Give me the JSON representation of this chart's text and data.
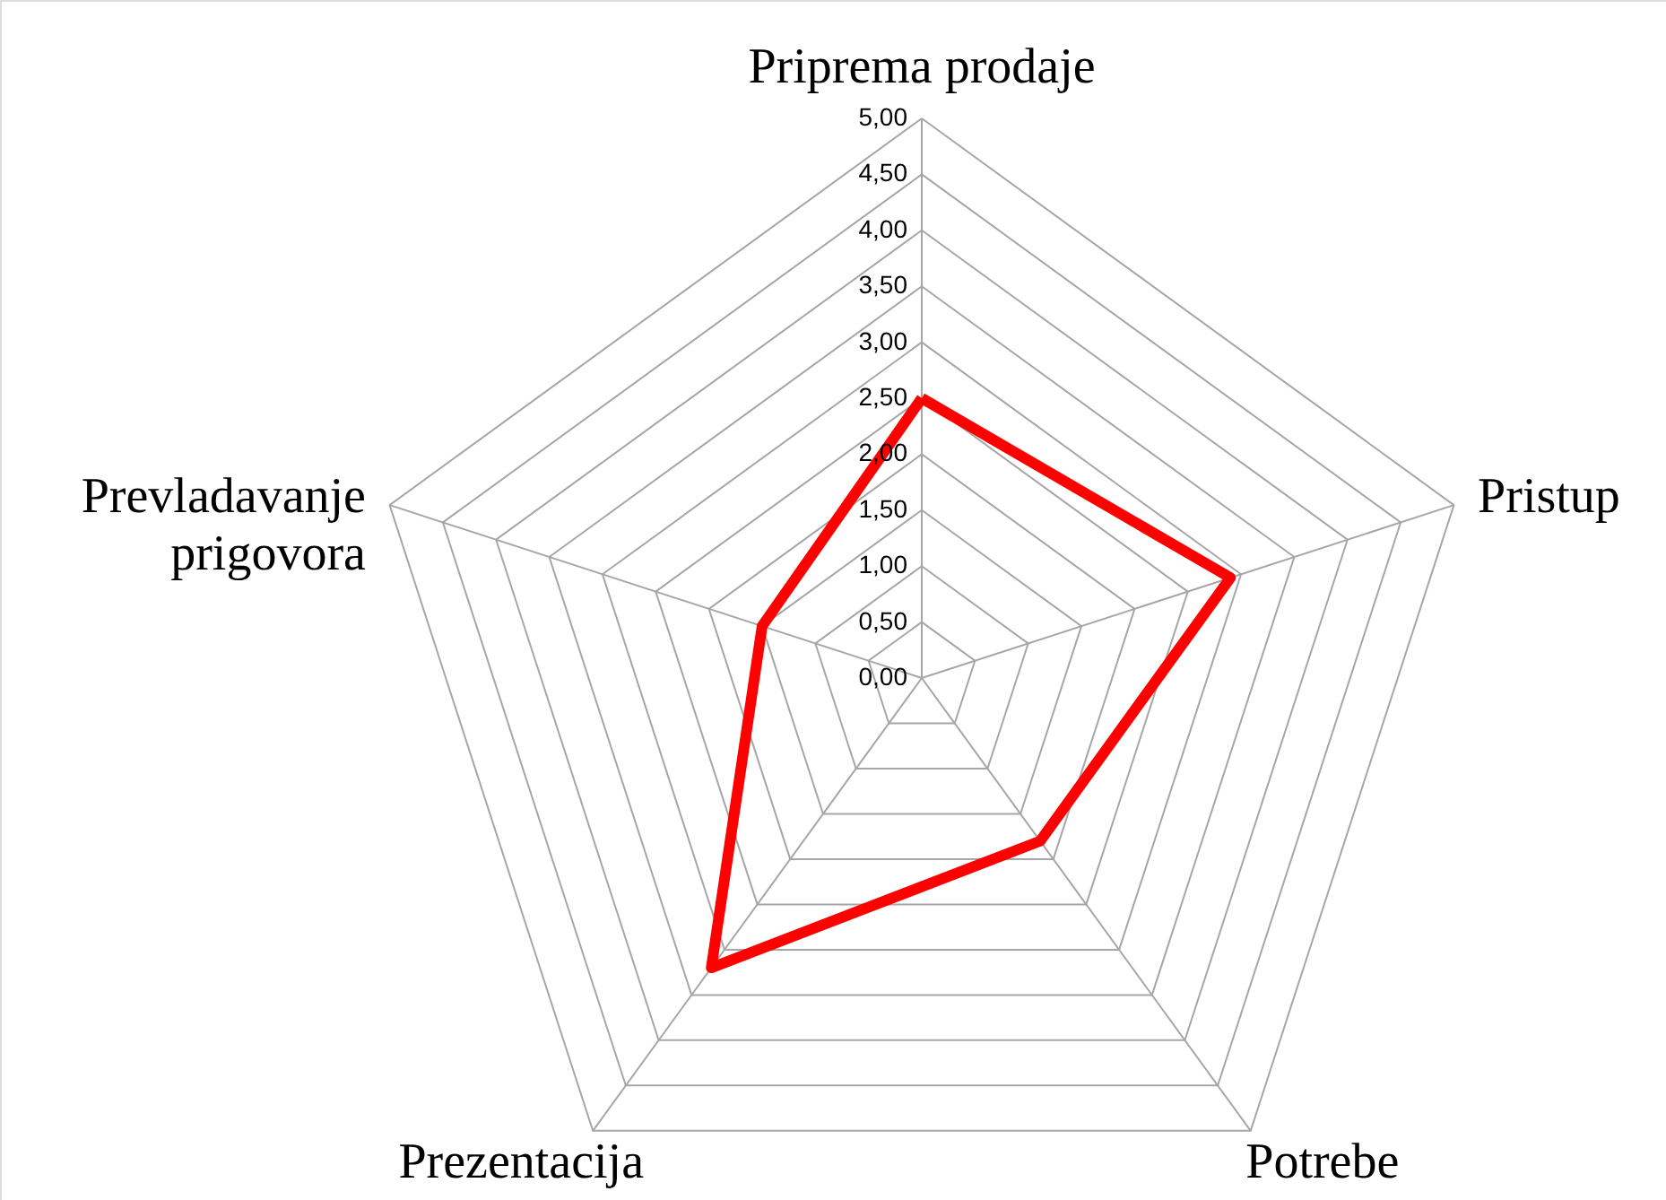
{
  "chart_data": {
    "type": "radar",
    "categories": [
      "Priprema prodaje",
      "Pristup",
      "Potrebe",
      "Prezentacija",
      "Prevladavanje prigovora"
    ],
    "series": [
      {
        "color": "#ff0000",
        "values": [
          2.5,
          2.9,
          1.8,
          3.2,
          1.5
        ]
      }
    ],
    "ylim": [
      0,
      5
    ],
    "yticks": [
      {
        "value": 0,
        "label": "0,00"
      },
      {
        "value": 0.5,
        "label": "0,50"
      },
      {
        "value": 1,
        "label": "1,00"
      },
      {
        "value": 1.5,
        "label": "1,50"
      },
      {
        "value": 2,
        "label": "2,00"
      },
      {
        "value": 2.5,
        "label": "2,50"
      },
      {
        "value": 3,
        "label": "3,00"
      },
      {
        "value": 3.5,
        "label": "3,50"
      },
      {
        "value": 4,
        "label": "4,00"
      },
      {
        "value": 4.5,
        "label": "4,50"
      },
      {
        "value": 5,
        "label": "5,00"
      }
    ],
    "grid": true,
    "marker": "none",
    "line_style": "solid"
  }
}
